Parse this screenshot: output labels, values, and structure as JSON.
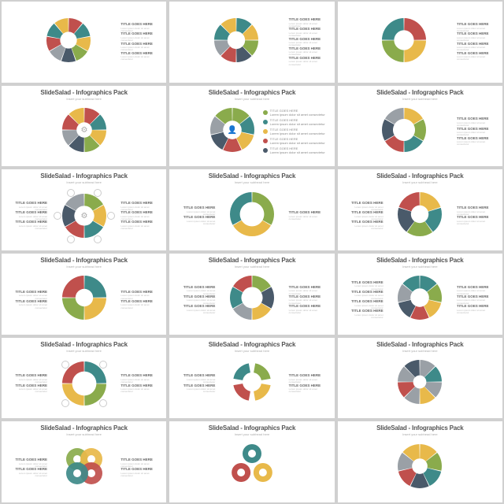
{
  "brand_title": "SlideSalad - Infographics Pack",
  "subhead": "Insert your subhead here",
  "item_title": "TITLE GOES HERE",
  "item_desc": "Lorem ipsum dolor sit amet consectetur",
  "palette": {
    "red": "#c0504d",
    "teal": "#3e8a89",
    "yellow": "#e8b94a",
    "green": "#8aab4c",
    "navy": "#4a5a6a",
    "grey": "#9aa0a6",
    "ltgrey": "#c9ced3"
  },
  "slides": [
    {
      "id": "s1",
      "segments": 9,
      "inner": 0.38,
      "legend": "right",
      "colors": [
        "#c0504d",
        "#3e8a89",
        "#e8b94a",
        "#8aab4c",
        "#4a5a6a",
        "#9aa0a6",
        "#c0504d",
        "#3e8a89",
        "#e8b94a"
      ],
      "side_items": 4
    },
    {
      "id": "s2",
      "segments": 8,
      "inner": 0.4,
      "legend": "right",
      "colors": [
        "#3e8a89",
        "#e8b94a",
        "#8aab4c",
        "#4a5a6a",
        "#c0504d",
        "#9aa0a6",
        "#3e8a89",
        "#e8b94a"
      ],
      "side_items": 5
    },
    {
      "id": "s3",
      "segments": 4,
      "inner": 0.45,
      "legend": "right",
      "colors": [
        "#c0504d",
        "#e8b94a",
        "#8aab4c",
        "#3e8a89"
      ],
      "icons": 4,
      "side_items": 4
    },
    {
      "id": "s4",
      "segments": 8,
      "inner": 0.35,
      "legend": "none",
      "colors": [
        "#c0504d",
        "#3e8a89",
        "#e8b94a",
        "#8aab4c",
        "#4a5a6a",
        "#9aa0a6",
        "#c0504d",
        "#e8b94a"
      ],
      "center_icon": "gear"
    },
    {
      "id": "s5",
      "segments": 7,
      "inner": 0.42,
      "legend": "vlist",
      "colors": [
        "#8aab4c",
        "#3e8a89",
        "#e8b94a",
        "#c0504d",
        "#4a5a6a",
        "#9aa0a6",
        "#8aab4c"
      ],
      "center_icon": "user"
    },
    {
      "id": "s6",
      "segments": 6,
      "inner": 0.5,
      "legend": "right",
      "colors": [
        "#e8b94a",
        "#8aab4c",
        "#3e8a89",
        "#c0504d",
        "#4a5a6a",
        "#9aa0a6"
      ],
      "side_items": 3,
      "style": "pinwheel"
    },
    {
      "id": "s7",
      "segments": 6,
      "inner": 0.45,
      "legend": "both",
      "colors": [
        "#8aab4c",
        "#e8b94a",
        "#3e8a89",
        "#c0504d",
        "#4a5a6a",
        "#9aa0a6"
      ],
      "center_icon": "gear",
      "icons_outer": 6
    },
    {
      "id": "s8",
      "segments": 3,
      "inner": 0.55,
      "legend": "both",
      "colors": [
        "#8aab4c",
        "#e8b94a",
        "#3e8a89"
      ],
      "style": "arrow"
    },
    {
      "id": "s9",
      "segments": 5,
      "inner": 0.4,
      "legend": "both",
      "colors": [
        "#e8b94a",
        "#3e8a89",
        "#8aab4c",
        "#4a5a6a",
        "#c0504d"
      ]
    },
    {
      "id": "s10",
      "segments": 4,
      "inner": 0.4,
      "legend": "both",
      "colors": [
        "#3e8a89",
        "#e8b94a",
        "#8aab4c",
        "#c0504d"
      ]
    },
    {
      "id": "s11",
      "segments": 6,
      "inner": 0.48,
      "legend": "both",
      "colors": [
        "#8aab4c",
        "#4a5a6a",
        "#e8b94a",
        "#9aa0a6",
        "#3e8a89",
        "#c0504d"
      ]
    },
    {
      "id": "s12",
      "segments": 7,
      "inner": 0.42,
      "legend": "both",
      "colors": [
        "#3e8a89",
        "#8aab4c",
        "#e8b94a",
        "#c0504d",
        "#4a5a6a",
        "#9aa0a6",
        "#3e8a89"
      ]
    },
    {
      "id": "s13",
      "segments": 4,
      "inner": 0.55,
      "legend": "both",
      "colors": [
        "#3e8a89",
        "#8aab4c",
        "#e8b94a",
        "#c0504d"
      ],
      "icons_outer": 4
    },
    {
      "id": "s14",
      "segments": 4,
      "inner": 0.0,
      "legend": "both",
      "colors": [
        "#8aab4c",
        "#e8b94a",
        "#c0504d",
        "#3e8a89"
      ],
      "style": "arrows-cycle"
    },
    {
      "id": "s15",
      "segments": 8,
      "inner": 0.3,
      "legend": "none",
      "colors": [
        "#9aa0a6",
        "#3e8a89",
        "#9aa0a6",
        "#e8b94a",
        "#9aa0a6",
        "#c0504d",
        "#9aa0a6",
        "#4a5a6a"
      ],
      "style": "petal"
    },
    {
      "id": "s16",
      "segments": 4,
      "inner": 0.3,
      "legend": "both",
      "colors": [
        "#8aab4c",
        "#e8b94a",
        "#c0504d",
        "#3e8a89"
      ],
      "style": "quad-circles"
    },
    {
      "id": "s17",
      "segments": 3,
      "inner": 0.0,
      "legend": "none",
      "colors": [
        "#3e8a89",
        "#e8b94a",
        "#c0504d"
      ],
      "style": "tri-prop"
    },
    {
      "id": "s18",
      "segments": 7,
      "inner": 0.35,
      "legend": "none",
      "colors": [
        "#e8b94a",
        "#8aab4c",
        "#3e8a89",
        "#4a5a6a",
        "#c0504d",
        "#9aa0a6",
        "#e8b94a"
      ],
      "style": "hex-ring"
    }
  ]
}
